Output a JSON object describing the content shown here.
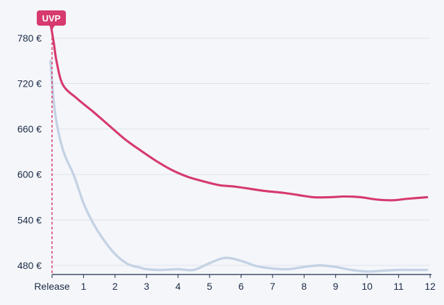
{
  "chart_data": {
    "type": "line",
    "x_tick_labels": [
      "Release",
      "1",
      "2",
      "3",
      "4",
      "5",
      "6",
      "7",
      "8",
      "9",
      "10",
      "11",
      "12"
    ],
    "x_ticks": [
      0,
      1,
      2,
      3,
      4,
      5,
      6,
      7,
      8,
      9,
      10,
      11,
      12
    ],
    "y_ticks": [
      480,
      540,
      600,
      660,
      720,
      780
    ],
    "y_tick_labels": [
      "480 €",
      "540 €",
      "600 €",
      "660 €",
      "720 €",
      "780 €"
    ],
    "xlim": [
      0,
      12
    ],
    "ylim": [
      468,
      812
    ],
    "grid": true,
    "marker": {
      "label": "UVP",
      "x": 0,
      "color": "#d63a6e"
    },
    "series": [
      {
        "color": "#d63a6e",
        "x": [
          -0.05,
          0.05,
          0.15,
          0.35,
          0.8,
          1.3,
          1.8,
          2.3,
          2.8,
          3.3,
          3.8,
          4.3,
          4.8,
          5.3,
          5.8,
          6.3,
          6.8,
          7.3,
          7.8,
          8.3,
          8.8,
          9.3,
          9.8,
          10.3,
          10.8,
          11.3,
          11.9
        ],
        "y": [
          800,
          775,
          748,
          718,
          700,
          683,
          665,
          647,
          632,
          618,
          606,
          597,
          591,
          586,
          584,
          581,
          578,
          576,
          573,
          570,
          570,
          571,
          570,
          567,
          566,
          568,
          570
        ]
      },
      {
        "color": "#c4d2e4",
        "x": [
          -0.05,
          0.1,
          0.35,
          0.7,
          1.0,
          1.3,
          1.6,
          2.0,
          2.4,
          2.8,
          3.0,
          3.4,
          4.0,
          4.5,
          5.0,
          5.5,
          6.0,
          6.5,
          7.0,
          7.5,
          8.0,
          8.5,
          9.0,
          9.5,
          10.0,
          10.5,
          11.0,
          11.5,
          11.9
        ],
        "y": [
          750,
          680,
          632,
          598,
          562,
          536,
          516,
          495,
          482,
          477,
          475,
          474,
          475,
          474,
          483,
          490,
          486,
          479,
          476,
          475,
          478,
          480,
          478,
          474,
          472,
          473,
          474,
          474,
          474
        ]
      }
    ]
  }
}
